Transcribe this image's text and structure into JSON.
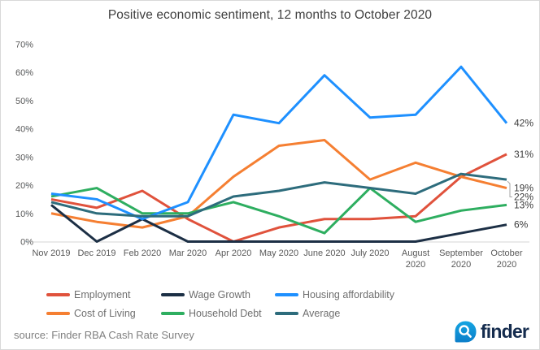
{
  "title": "Positive economic sentiment, 12 months to October 2020",
  "chart_data": {
    "type": "line",
    "title": "Positive economic sentiment, 12 months to October 2020",
    "categories": [
      "Nov 2019",
      "Dec 2019",
      "Feb 2020",
      "Mar 2020",
      "Apr 2020",
      "May 2020",
      "June 2020",
      "July 2020",
      "August 2020",
      "September 2020",
      "October 2020"
    ],
    "series": [
      {
        "name": "Employment",
        "color": "#e0523c",
        "values": [
          15,
          12,
          18,
          8,
          0,
          5,
          8,
          8,
          9,
          23,
          31
        ],
        "end_label": "31%"
      },
      {
        "name": "Wage Growth",
        "color": "#1c2f45",
        "values": [
          13,
          0,
          8,
          0,
          0,
          0,
          0,
          0,
          0,
          3,
          6
        ],
        "end_label": "6%"
      },
      {
        "name": "Housing affordability",
        "color": "#1e90ff",
        "values": [
          17,
          15,
          8,
          14,
          45,
          42,
          59,
          44,
          45,
          62,
          42
        ],
        "end_label": "42%"
      },
      {
        "name": "Cost of Living",
        "color": "#f57f32",
        "values": [
          10,
          7,
          5,
          9,
          23,
          34,
          36,
          22,
          28,
          23,
          19
        ],
        "end_label": "19%"
      },
      {
        "name": "Household Debt",
        "color": "#2eae60",
        "values": [
          16,
          19,
          10,
          10,
          14,
          9,
          3,
          19,
          7,
          11,
          13
        ],
        "end_label": "13%"
      },
      {
        "name": "Average",
        "color": "#2d6c7c",
        "values": [
          14,
          10,
          9,
          9,
          16,
          18,
          21,
          19,
          17,
          24,
          22
        ],
        "end_label": "22%"
      }
    ],
    "xlabel": "",
    "ylabel": "",
    "ylim": [
      0,
      70
    ],
    "y_ticks": [
      "0%",
      "10%",
      "20%",
      "30%",
      "40%",
      "50%",
      "60%",
      "70%"
    ],
    "grid": false,
    "legend_position": "bottom",
    "right_end_labels_top_to_bottom": [
      "42%",
      "31%",
      "19%",
      "22%",
      "13%",
      "6%"
    ]
  },
  "footer": {
    "source": "source: Finder RBA Cash Rate Survey"
  },
  "logo": {
    "text": "finder",
    "icon": "magnifier-icon",
    "icon_color": "#0d94da",
    "text_color": "#152c4e"
  }
}
